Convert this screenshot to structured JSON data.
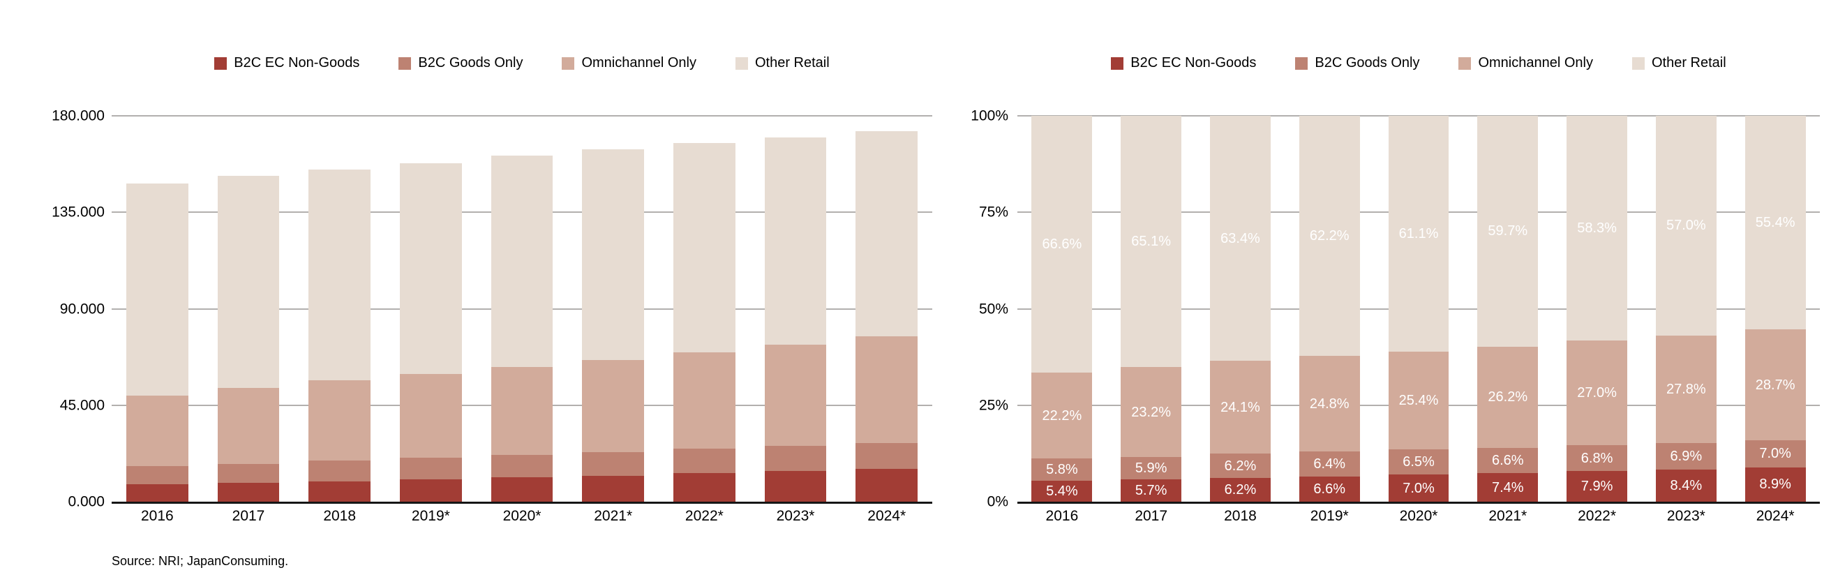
{
  "page": {
    "source_note": "Source: NRI; JapanConsuming."
  },
  "legend": {
    "items": [
      {
        "label": "B2C EC Non-Goods",
        "color": "#a23d35"
      },
      {
        "label": "B2C Goods Only",
        "color": "#bd8272"
      },
      {
        "label": "Omnichannel Only",
        "color": "#d2ab9b"
      },
      {
        "label": "Other Retail",
        "color": "#e7dcd2"
      }
    ]
  },
  "chart_data": [
    {
      "id": "retail-market-absolute",
      "type": "bar",
      "stacked": true,
      "value_format": "absolute",
      "title": "",
      "categories": [
        "2016",
        "2017",
        "2018",
        "2019*",
        "2020*",
        "2021*",
        "2022*",
        "2023*",
        "2024*"
      ],
      "series": [
        {
          "name": "B2C EC Non-Goods",
          "color": "#a23d35",
          "values": [
            8000,
            8700,
            9600,
            10400,
            11300,
            12200,
            13200,
            14300,
            15400
          ]
        },
        {
          "name": "B2C Goods Only",
          "color": "#bd8272",
          "values": [
            8600,
            9000,
            9600,
            10100,
            10500,
            10900,
            11400,
            11700,
            12100
          ]
        },
        {
          "name": "Omnichannel Only",
          "color": "#d2ab9b",
          "values": [
            33000,
            35300,
            37400,
            39200,
            41000,
            43100,
            45200,
            47300,
            49600
          ]
        },
        {
          "name": "Other Retail",
          "color": "#e7dcd2",
          "values": [
            98900,
            99000,
            98400,
            98300,
            98700,
            98300,
            97500,
            96700,
            95700
          ]
        }
      ],
      "totals_estimated": [
        148500,
        152000,
        155000,
        158000,
        161500,
        164500,
        167300,
        170000,
        172800
      ],
      "ylim": [
        0,
        180000
      ],
      "ytick_values": [
        0,
        45000,
        90000,
        135000,
        180000
      ],
      "ytick_labels": [
        "0.000",
        "45.000",
        "90.000",
        "135.000",
        "180.000"
      ],
      "grid": true,
      "legend_position": "top",
      "data_labels": false
    },
    {
      "id": "retail-market-percent",
      "type": "bar",
      "stacked": true,
      "value_format": "percent",
      "title": "",
      "categories": [
        "2016",
        "2017",
        "2018",
        "2019*",
        "2020*",
        "2021*",
        "2022*",
        "2023*",
        "2024*"
      ],
      "series": [
        {
          "name": "B2C EC Non-Goods",
          "color": "#a23d35",
          "values": [
            5.4,
            5.7,
            6.2,
            6.6,
            7.0,
            7.4,
            7.9,
            8.4,
            8.9
          ],
          "labels": [
            "5.4%",
            "5.7%",
            "6.2%",
            "6.6%",
            "7.0%",
            "7.4%",
            "7.9%",
            "8.4%",
            "8.9%"
          ]
        },
        {
          "name": "B2C Goods Only",
          "color": "#bd8272",
          "values": [
            5.8,
            5.9,
            6.2,
            6.4,
            6.5,
            6.6,
            6.8,
            6.9,
            7.0
          ],
          "labels": [
            "5.8%",
            "5.9%",
            "6.2%",
            "6.4%",
            "6.5%",
            "6.6%",
            "6.8%",
            "6.9%",
            "7.0%"
          ]
        },
        {
          "name": "Omnichannel Only",
          "color": "#d2ab9b",
          "values": [
            22.2,
            23.2,
            24.1,
            24.8,
            25.4,
            26.2,
            27.0,
            27.8,
            28.7
          ],
          "labels": [
            "22.2%",
            "23.2%",
            "24.1%",
            "24.8%",
            "25.4%",
            "26.2%",
            "27.0%",
            "27.8%",
            "28.7%"
          ]
        },
        {
          "name": "Other Retail",
          "color": "#e7dcd2",
          "values": [
            66.6,
            65.1,
            63.4,
            62.2,
            61.1,
            59.7,
            58.3,
            57.0,
            55.4
          ],
          "labels": [
            "66.6%",
            "65.1%",
            "63.4%",
            "62.2%",
            "61.1%",
            "59.7%",
            "58.3%",
            "57.0%",
            "55.4%"
          ]
        }
      ],
      "ylim": [
        0,
        100
      ],
      "ytick_values": [
        0,
        25,
        50,
        75,
        100
      ],
      "ytick_labels": [
        "0%",
        "25%",
        "50%",
        "75%",
        "100%"
      ],
      "grid": true,
      "legend_position": "top",
      "data_labels": true
    }
  ]
}
